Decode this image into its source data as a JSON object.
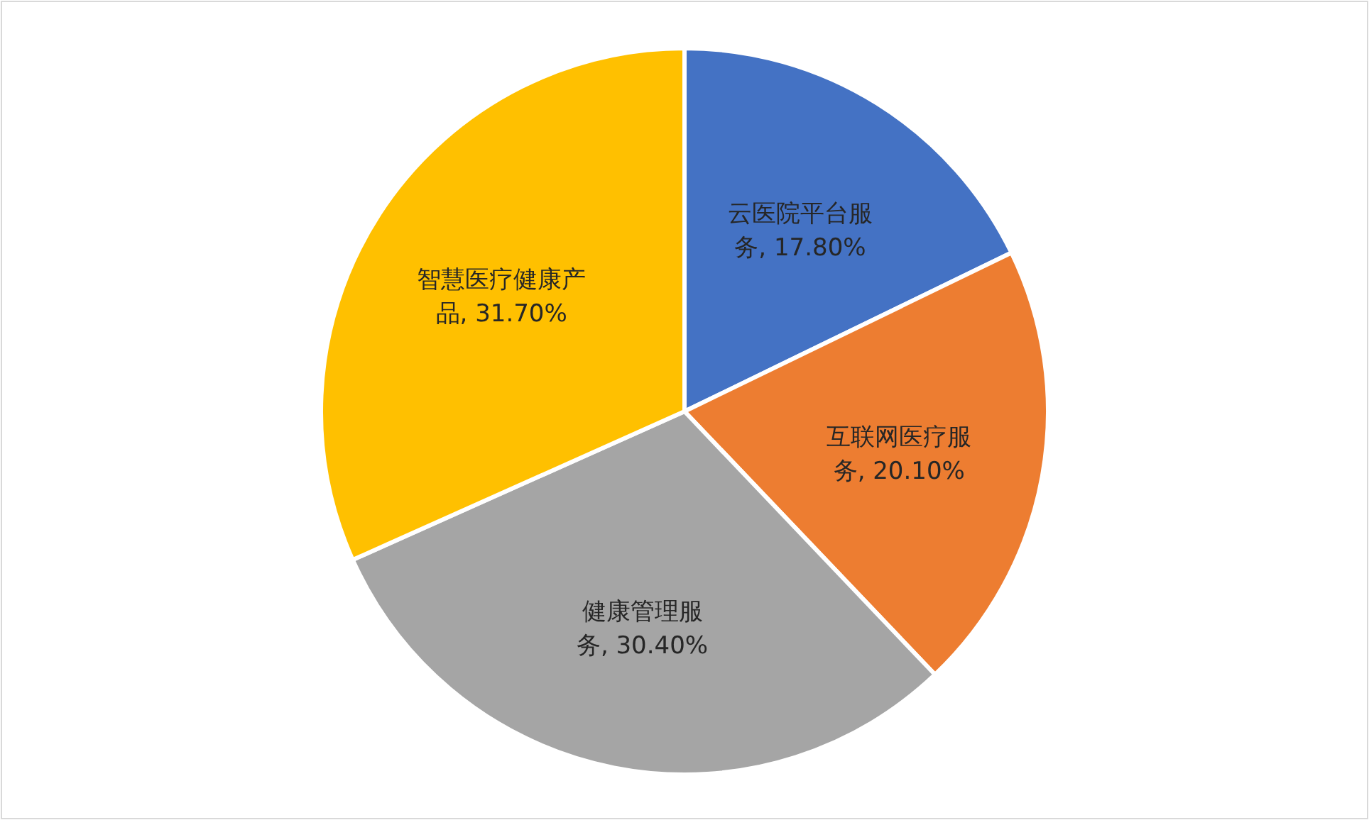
{
  "chart_data": {
    "type": "pie",
    "categories": [
      "云医院平台服务",
      "互联网医疗服务",
      "健康管理服务",
      "智慧医疗健康产品"
    ],
    "values": [
      17.8,
      20.1,
      30.4,
      31.7
    ],
    "value_labels": [
      "17.80%",
      "20.10%",
      "30.40%",
      "31.70%"
    ],
    "colors": [
      "#4472c4",
      "#ed7d31",
      "#a5a5a5",
      "#ffc000"
    ]
  }
}
